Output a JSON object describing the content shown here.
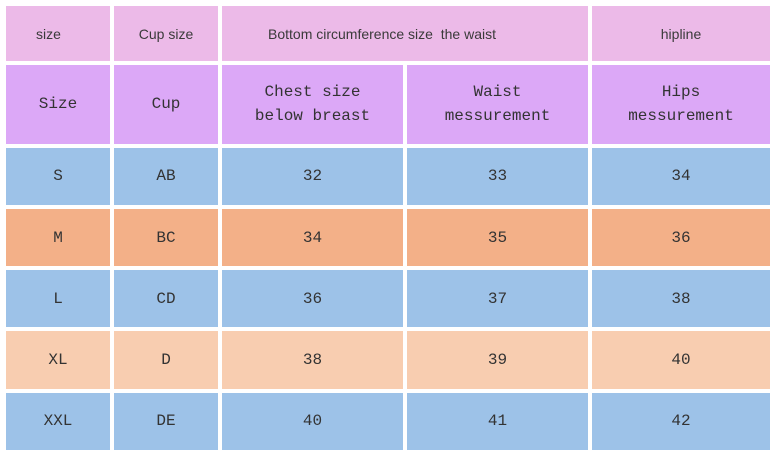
{
  "header_row_1": [
    "size",
    "Cup size",
    "Bottom circumference size",
    "the waist",
    "hipline"
  ],
  "header_row_2": [
    [
      "Size"
    ],
    [
      "Cup"
    ],
    [
      "Chest size",
      "below breast"
    ],
    [
      "Waist",
      "messurement"
    ],
    [
      "Hips",
      "messurement"
    ]
  ],
  "rows": [
    {
      "size": "S",
      "cup": "AB",
      "chest": "32",
      "waist": "33",
      "hips": "34",
      "color": "#9dc2e8"
    },
    {
      "size": "M",
      "cup": "BC",
      "chest": "34",
      "waist": "35",
      "hips": "36",
      "color": "#f3b088"
    },
    {
      "size": "L",
      "cup": "CD",
      "chest": "36",
      "waist": "37",
      "hips": "38",
      "color": "#9dc2e8"
    },
    {
      "size": "XL",
      "cup": "D",
      "chest": "38",
      "waist": "39",
      "hips": "40",
      "color": "#f8cdb0"
    },
    {
      "size": "XXL",
      "cup": "DE",
      "chest": "40",
      "waist": "41",
      "hips": "42",
      "color": "#9dc2e8"
    }
  ],
  "colors": {
    "header_row_1_bg": "#ecbae8",
    "header_row_2_bg": "#dca8f7"
  }
}
